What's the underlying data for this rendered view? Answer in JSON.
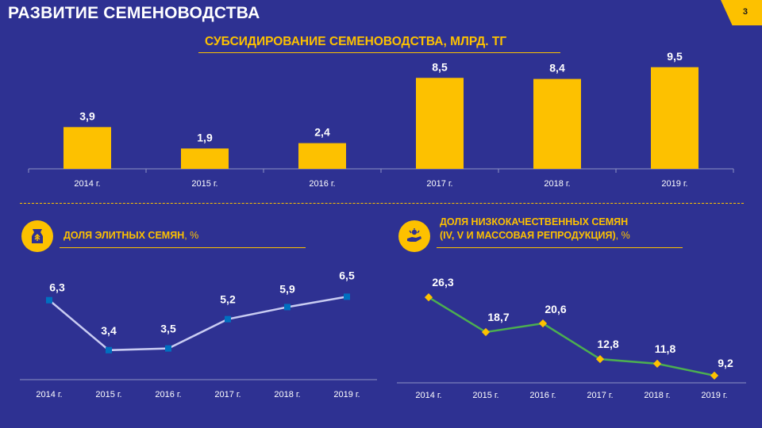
{
  "slide": {
    "title": "РАЗВИТИЕ СЕМЕНОВОДСТВА",
    "page_number": "3"
  },
  "colors": {
    "background": "#2E3192",
    "accent": "#FDC100",
    "elite_line": "#C9CCF2",
    "elite_marker": "#0070C0",
    "low_quality_line": "#4CAF50",
    "low_quality_marker": "#FDC100"
  },
  "icons": {
    "elite_section": "seed-bag-icon",
    "low_quality_section": "seed-hand-icon"
  },
  "chart_data": [
    {
      "type": "bar",
      "title": "СУБСИДИРОВАНИЕ СЕМЕНОВОДСТВА, МЛРД. ТГ",
      "categories": [
        "2014 г.",
        "2015 г.",
        "2016 г.",
        "2017 г.",
        "2018 г.",
        "2019 г."
      ],
      "values": [
        3.9,
        1.9,
        2.4,
        8.5,
        8.4,
        9.5
      ],
      "labels": [
        "3,9",
        "1,9",
        "2,4",
        "8,5",
        "8,4",
        "9,5"
      ],
      "ylim": [
        0,
        10
      ],
      "grid": false,
      "legend": "none"
    },
    {
      "type": "line",
      "title": "ДОЛЯ ЭЛИТНЫХ СЕМЯН",
      "title_unit": ", %",
      "categories": [
        "2014 г.",
        "2015 г.",
        "2016 г.",
        "2017 г.",
        "2018 г.",
        "2019 г."
      ],
      "values": [
        6.3,
        3.4,
        3.5,
        5.2,
        5.9,
        6.5
      ],
      "labels": [
        "6,3",
        "3,4",
        "3,5",
        "5,2",
        "5,9",
        "6,5"
      ],
      "ylim": [
        1,
        9
      ],
      "grid": false,
      "legend": "none"
    },
    {
      "type": "line",
      "title_line1": "ДОЛЯ НИЗКОКАЧЕСТВЕННЫХ СЕМЯН",
      "title_line2": "(IV, V И МАССОВАЯ РЕПРОДУКЦИЯ)",
      "title_unit": ", %",
      "categories": [
        "2014 г.",
        "2015 г.",
        "2016 г.",
        "2017 г.",
        "2018 г.",
        "2019 г."
      ],
      "values": [
        26.3,
        18.7,
        20.6,
        12.8,
        11.8,
        9.2
      ],
      "labels": [
        "26,3",
        "18,7",
        "20,6",
        "12,8",
        "11,8",
        "9,2"
      ],
      "ylim": [
        0,
        40
      ],
      "grid": false,
      "legend": "none"
    }
  ]
}
